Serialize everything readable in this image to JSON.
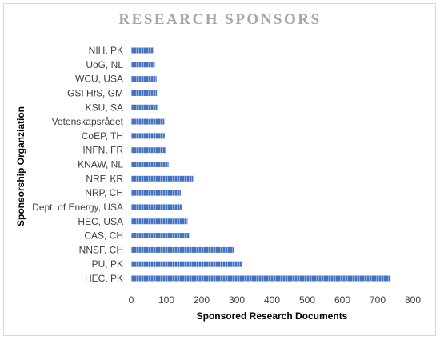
{
  "chart_data": {
    "type": "bar",
    "orientation": "horizontal",
    "title": "RESEARCH SPONSORS",
    "xlabel": "Sponsored Research Documents",
    "ylabel": "Sponsorship Organziation",
    "categories": [
      "NIH, PK",
      "UoG, NL",
      "WCU, USA",
      "GSI HfS, GM",
      "KSU, SA",
      "Vetenskapsrådet",
      "CoEP, TH",
      "INFN, FR",
      "KNAW, NL",
      "NRF, KR",
      "NRP, CH",
      "Dept. of Energy, USA",
      "HEC, USA",
      "CAS, CH",
      "NNSF, CH",
      "PU, PK",
      "HEC, PK"
    ],
    "values": [
      63,
      67,
      72,
      73,
      74,
      94,
      95,
      99,
      106,
      176,
      141,
      143,
      160,
      165,
      291,
      315,
      737
    ],
    "xlim": [
      0,
      800
    ],
    "xticks": [
      0,
      100,
      200,
      300,
      400,
      500,
      600,
      700,
      800
    ],
    "grid": false,
    "legend": "none",
    "bar_color": "#4472c4"
  }
}
